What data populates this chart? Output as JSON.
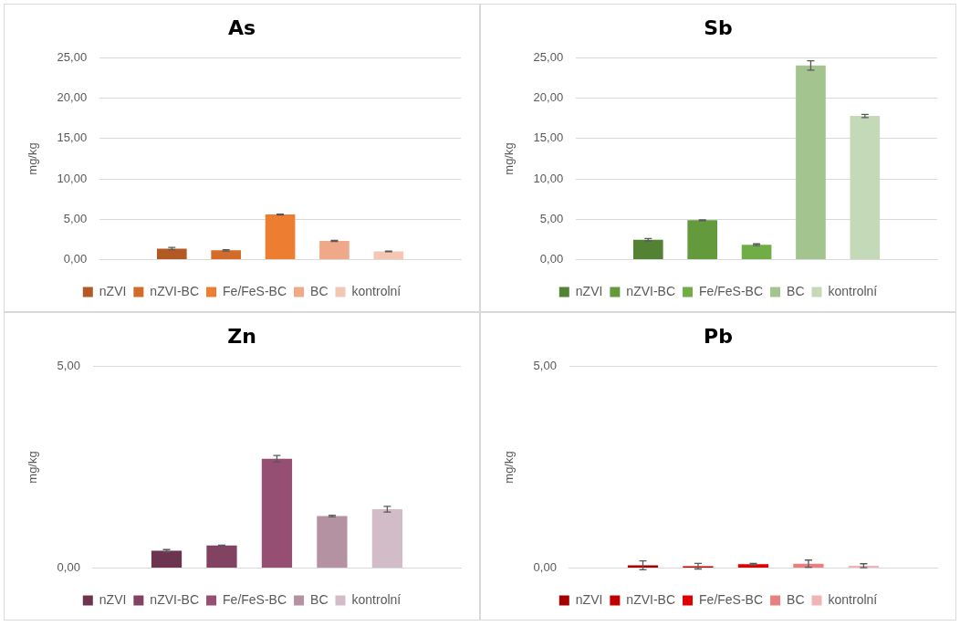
{
  "chart_data": [
    {
      "type": "bar",
      "title": "As",
      "ylabel": "mg/kg",
      "categories": [
        null
      ],
      "ylim": [
        0,
        25
      ],
      "yticks": [
        {
          "value": 0,
          "label": "0,00"
        },
        {
          "value": 5,
          "label": "5,00"
        },
        {
          "value": 10,
          "label": "10,00"
        },
        {
          "value": 15,
          "label": "15,00"
        },
        {
          "value": 20,
          "label": "20,00"
        },
        {
          "value": 25,
          "label": "25,00"
        }
      ],
      "grid": "y",
      "legend": "bottom",
      "series": [
        {
          "name": "nZVI",
          "color": "#b35a24",
          "values": [
            1.38
          ],
          "errors": [
            0.15
          ]
        },
        {
          "name": "nZVI-BC",
          "color": "#d36b2a",
          "values": [
            1.16
          ],
          "errors": [
            0.08
          ]
        },
        {
          "name": "Fe/FeS-BC",
          "color": "#ed7d31",
          "values": [
            5.6
          ],
          "errors": [
            0.05
          ]
        },
        {
          "name": "BC",
          "color": "#f0a988",
          "values": [
            2.33
          ],
          "errors": [
            0.08
          ]
        },
        {
          "name": "kontrolní",
          "color": "#f5c6b4",
          "values": [
            1.02
          ],
          "errors": [
            0.04
          ]
        }
      ]
    },
    {
      "type": "bar",
      "title": "Sb",
      "ylabel": "mg/kg",
      "categories": [
        null
      ],
      "ylim": [
        0,
        25
      ],
      "yticks": [
        {
          "value": 0,
          "label": "0,00"
        },
        {
          "value": 5,
          "label": "5,00"
        },
        {
          "value": 10,
          "label": "10,00"
        },
        {
          "value": 15,
          "label": "15,00"
        },
        {
          "value": 20,
          "label": "20,00"
        },
        {
          "value": 25,
          "label": "25,00"
        }
      ],
      "grid": "y",
      "legend": "bottom",
      "series": [
        {
          "name": "nZVI",
          "color": "#548235",
          "values": [
            2.48
          ],
          "errors": [
            0.15
          ]
        },
        {
          "name": "nZVI-BC",
          "color": "#639a3c",
          "values": [
            4.89
          ],
          "errors": [
            0.05
          ]
        },
        {
          "name": "Fe/FeS-BC",
          "color": "#70ad47",
          "values": [
            1.86
          ],
          "errors": [
            0.1
          ]
        },
        {
          "name": "BC",
          "color": "#a3c48f",
          "values": [
            24.06
          ],
          "errors": [
            0.58
          ]
        },
        {
          "name": "kontrolní",
          "color": "#c4d9b8",
          "values": [
            17.8
          ],
          "errors": [
            0.2
          ]
        }
      ]
    },
    {
      "type": "bar",
      "title": "Zn",
      "ylabel": "mg/kg",
      "categories": [
        null
      ],
      "ylim": [
        0,
        5
      ],
      "yticks": [
        {
          "value": 0,
          "label": "0,00"
        },
        {
          "value": 5,
          "label": "5,00"
        }
      ],
      "grid": "y",
      "legend": "bottom",
      "series": [
        {
          "name": "nZVI",
          "color": "#6d3450",
          "values": [
            0.43
          ],
          "errors": [
            0.03
          ]
        },
        {
          "name": "nZVI-BC",
          "color": "#824262",
          "values": [
            0.56
          ],
          "errors": [
            0.01
          ]
        },
        {
          "name": "Fe/FeS-BC",
          "color": "#964f72",
          "values": [
            2.71
          ],
          "errors": [
            0.08
          ]
        },
        {
          "name": "BC",
          "color": "#b592a2",
          "values": [
            1.29
          ],
          "errors": [
            0.02
          ]
        },
        {
          "name": "kontrolní",
          "color": "#d2bcc8",
          "values": [
            1.46
          ],
          "errors": [
            0.07
          ]
        }
      ]
    },
    {
      "type": "bar",
      "title": "Pb",
      "ylabel": "mg/kg",
      "categories": [
        null
      ],
      "ylim": [
        0,
        5
      ],
      "yticks": [
        {
          "value": 0,
          "label": "0,00"
        },
        {
          "value": 5,
          "label": "5,00"
        }
      ],
      "grid": "y",
      "legend": "bottom",
      "series": [
        {
          "name": "nZVI",
          "color": "#a50000",
          "values": [
            0.07
          ],
          "errors": [
            0.11
          ]
        },
        {
          "name": "nZVI-BC",
          "color": "#c00000",
          "values": [
            0.05
          ],
          "errors": [
            0.07
          ]
        },
        {
          "name": "Fe/FeS-BC",
          "color": "#e00000",
          "values": [
            0.1
          ],
          "errors": [
            0.02
          ]
        },
        {
          "name": "BC",
          "color": "#e88080",
          "values": [
            0.11
          ],
          "errors": [
            0.09
          ]
        },
        {
          "name": "kontrolní",
          "color": "#f0b4b4",
          "values": [
            0.06
          ],
          "errors": [
            0.05
          ]
        }
      ]
    }
  ]
}
